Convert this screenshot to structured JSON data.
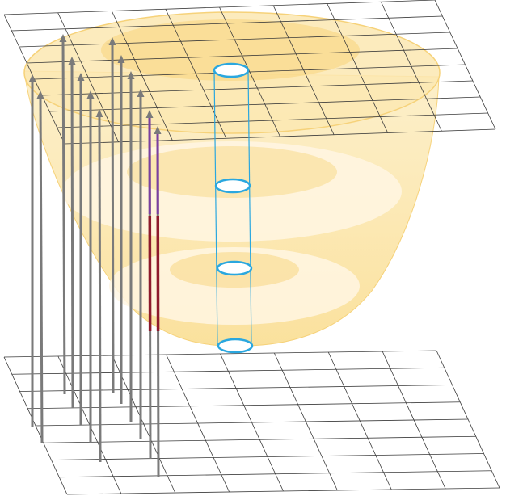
{
  "colors": {
    "background": "#ffffff",
    "grid_line": "#3a3a3a",
    "volume_fill": "#f9d77c",
    "volume_edge": "#f6d27a",
    "slice_highlight": "#fff6e3",
    "column_stroke": "#2aa7df",
    "column_cap_fill": "#ffffff",
    "ray": "#7a7a7a",
    "ray_segment_inside_upper": "#7b3fa0",
    "ray_segment_inside_lower": "#8e1a2c"
  },
  "diagram": {
    "grid_planes": [
      {
        "name": "top-grid-plane",
        "columns": 8,
        "rows": 8
      },
      {
        "name": "bottom-grid-plane",
        "columns": 8,
        "rows": 8
      }
    ],
    "ray_count": 13,
    "column_sample_count": 4
  }
}
